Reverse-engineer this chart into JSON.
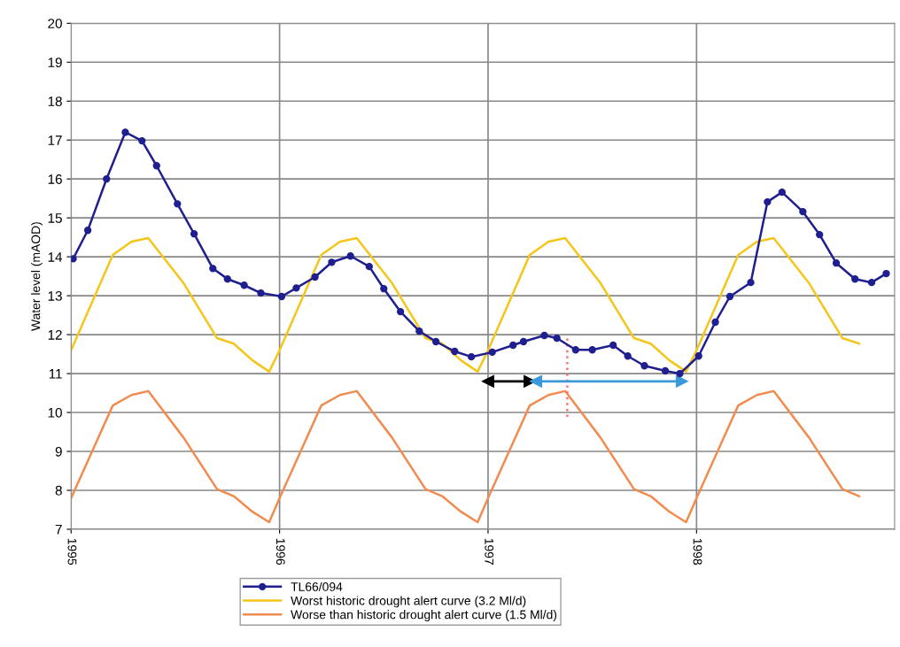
{
  "chart_data": {
    "type": "line",
    "ylabel": "Water level (mAOD)",
    "xlim": [
      1995,
      1998.95
    ],
    "xticks": [
      1995,
      1996,
      1997,
      1998
    ],
    "ylim": [
      7,
      20
    ],
    "yticks": [
      7,
      8,
      9,
      10,
      11,
      12,
      13,
      14,
      15,
      16,
      17,
      18,
      19,
      20
    ],
    "grid": true,
    "legend": "bottom",
    "series": [
      {
        "name": "TL66/094",
        "color": "#1f1f8f",
        "marker": "circle",
        "x": [
          1995.01,
          1995.08,
          1995.17,
          1995.26,
          1995.34,
          1995.41,
          1995.51,
          1995.59,
          1995.68,
          1995.75,
          1995.83,
          1995.91,
          1996.01,
          1996.08,
          1996.17,
          1996.25,
          1996.34,
          1996.43,
          1996.5,
          1996.58,
          1996.67,
          1996.75,
          1996.84,
          1996.92,
          1997.02,
          1997.12,
          1997.17,
          1997.27,
          1997.33,
          1997.42,
          1997.5,
          1997.6,
          1997.67,
          1997.75,
          1997.85,
          1997.92,
          1998.01,
          1998.09,
          1998.16,
          1998.26,
          1998.34,
          1998.41,
          1998.51,
          1998.59,
          1998.67,
          1998.76,
          1998.84,
          1998.91
        ],
        "values": [
          13.95,
          14.68,
          16.0,
          17.2,
          16.98,
          16.34,
          15.36,
          14.59,
          13.7,
          13.43,
          13.27,
          13.07,
          12.98,
          13.2,
          13.48,
          13.86,
          14.02,
          13.75,
          13.18,
          12.59,
          12.09,
          11.82,
          11.57,
          11.43,
          11.55,
          11.73,
          11.82,
          11.98,
          11.91,
          11.61,
          11.61,
          11.73,
          11.45,
          11.2,
          11.07,
          11.0,
          11.45,
          12.32,
          12.98,
          13.34,
          15.41,
          15.66,
          15.16,
          14.57,
          13.84,
          13.43,
          13.34,
          13.57
        ]
      },
      {
        "name": "Worst historic drought alert curve (3.2 Ml/d)",
        "color": "#f5c518",
        "x": [
          1995.0,
          1995.2,
          1995.29,
          1995.37,
          1995.54,
          1995.7,
          1995.78,
          1995.87,
          1995.95,
          1996.0,
          1996.2,
          1996.29,
          1996.37,
          1996.54,
          1996.7,
          1996.78,
          1996.87,
          1996.95,
          1997.0,
          1997.2,
          1997.29,
          1997.37,
          1997.54,
          1997.7,
          1997.78,
          1997.87,
          1997.95,
          1998.0,
          1998.2,
          1998.29,
          1998.37,
          1998.54,
          1998.7,
          1998.78
        ],
        "values": [
          11.6,
          14.05,
          14.39,
          14.48,
          13.32,
          11.91,
          11.77,
          11.34,
          11.05,
          11.6,
          14.05,
          14.39,
          14.48,
          13.32,
          11.91,
          11.77,
          11.34,
          11.05,
          11.6,
          14.05,
          14.39,
          14.48,
          13.32,
          11.91,
          11.77,
          11.34,
          11.05,
          11.6,
          14.05,
          14.39,
          14.48,
          13.32,
          11.91,
          11.77
        ]
      },
      {
        "name": "Worse than historic drought alert curve (1.5 Ml/d)",
        "color": "#f08c50",
        "x": [
          1995.0,
          1995.2,
          1995.29,
          1995.37,
          1995.54,
          1995.7,
          1995.78,
          1995.87,
          1995.95,
          1996.0,
          1996.2,
          1996.29,
          1996.37,
          1996.54,
          1996.7,
          1996.78,
          1996.87,
          1996.95,
          1997.0,
          1997.2,
          1997.29,
          1997.37,
          1997.54,
          1997.7,
          1997.78,
          1997.87,
          1997.95,
          1998.0,
          1998.2,
          1998.29,
          1998.37,
          1998.54,
          1998.7,
          1998.78
        ],
        "values": [
          7.8,
          10.18,
          10.45,
          10.55,
          9.35,
          8.03,
          7.85,
          7.45,
          7.18,
          7.8,
          10.18,
          10.45,
          10.55,
          9.35,
          8.03,
          7.85,
          7.45,
          7.18,
          7.8,
          10.18,
          10.45,
          10.55,
          9.35,
          8.03,
          7.85,
          7.45,
          7.18,
          7.8,
          10.18,
          10.45,
          10.55,
          9.35,
          8.03,
          7.85
        ]
      },
      {
        "color": "#ff7070",
        "line_style": "dotted",
        "x": [
          1997.38,
          1997.38
        ],
        "values": [
          11.9,
          9.8
        ]
      },
      {
        "color": "#000000",
        "marker": "triangle",
        "x": [
          1997.0,
          1997.2
        ],
        "values": [
          10.8,
          10.8
        ]
      },
      {
        "color": "#3a9ad9",
        "marker": "triangle",
        "x": [
          1997.23,
          1997.93
        ],
        "values": [
          10.8,
          10.8
        ]
      }
    ]
  }
}
